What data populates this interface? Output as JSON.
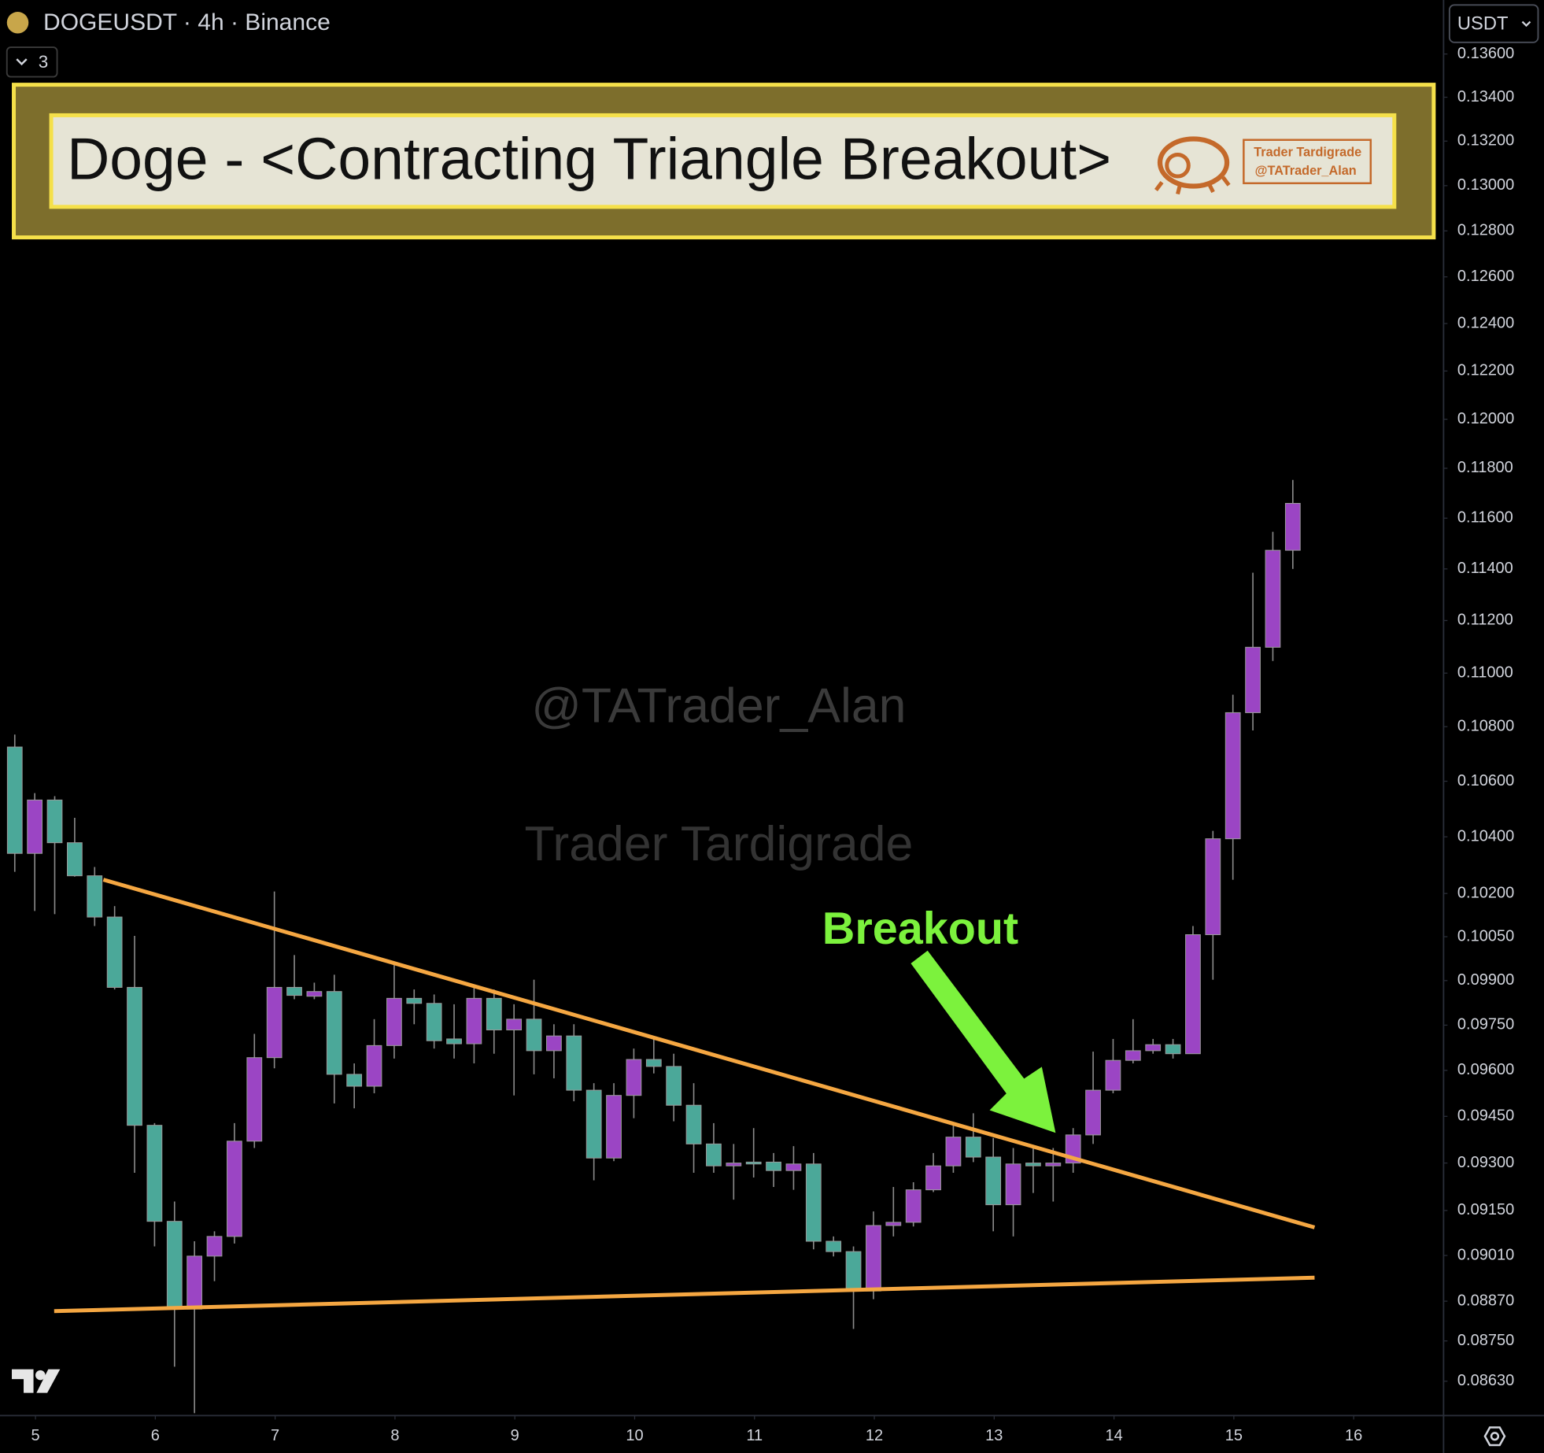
{
  "symbol_label": "DOGEUSDT · 4h · Binance",
  "indicator_count": 3,
  "banner": {
    "title": "Doge - <Contracting Triangle Breakout>",
    "badge_name": "Trader Tardigrade",
    "badge_handle": "@TATrader_Alan"
  },
  "watermark": {
    "handle": "@TATrader_Alan",
    "name": "Trader Tardigrade"
  },
  "annotation": "Breakout",
  "chart_data": {
    "type": "candlestick",
    "currency": "USDT",
    "log_scale": true,
    "up_color": "#9b45c4",
    "down_color": "#4ba899",
    "ylim": [
      0.08529,
      0.13854
    ],
    "yticks": [
      {
        "value": 0.136,
        "label": "0.13600"
      },
      {
        "value": 0.134,
        "label": "0.13400"
      },
      {
        "value": 0.132,
        "label": "0.13200"
      },
      {
        "value": 0.13,
        "label": "0.13000"
      },
      {
        "value": 0.128,
        "label": "0.12800"
      },
      {
        "value": 0.126,
        "label": "0.12600"
      },
      {
        "value": 0.124,
        "label": "0.12400"
      },
      {
        "value": 0.122,
        "label": "0.12200"
      },
      {
        "value": 0.12,
        "label": "0.12000"
      },
      {
        "value": 0.118,
        "label": "0.11800"
      },
      {
        "value": 0.116,
        "label": "0.11600"
      },
      {
        "value": 0.114,
        "label": "0.11400"
      },
      {
        "value": 0.112,
        "label": "0.11200"
      },
      {
        "value": 0.11,
        "label": "0.11000"
      },
      {
        "value": 0.108,
        "label": "0.10800"
      },
      {
        "value": 0.106,
        "label": "0.10600"
      },
      {
        "value": 0.104,
        "label": "0.10400"
      },
      {
        "value": 0.102,
        "label": "0.10200"
      },
      {
        "value": 0.1005,
        "label": "0.10050"
      },
      {
        "value": 0.099,
        "label": "0.09900"
      },
      {
        "value": 0.0975,
        "label": "0.09750"
      },
      {
        "value": 0.096,
        "label": "0.09600"
      },
      {
        "value": 0.0945,
        "label": "0.09450"
      },
      {
        "value": 0.093,
        "label": "0.09300"
      },
      {
        "value": 0.0915,
        "label": "0.09150"
      },
      {
        "value": 0.0901,
        "label": "0.09010"
      },
      {
        "value": 0.0887,
        "label": "0.08870"
      },
      {
        "value": 0.0875,
        "label": "0.08750"
      },
      {
        "value": 0.0863,
        "label": "0.08630"
      }
    ],
    "xlim": [
      4.704,
      16.75
    ],
    "xticks": [
      5,
      6,
      7,
      8,
      9,
      10,
      11,
      12,
      13,
      14,
      15,
      16
    ],
    "open": [
      0.10725,
      0.10341,
      0.10532,
      0.10379,
      0.10262,
      0.10118,
      0.09877,
      0.09421,
      0.09116,
      0.08846,
      0.09008,
      0.09069,
      0.0937,
      0.09642,
      0.09877,
      0.09847,
      0.09863,
      0.09587,
      0.09548,
      0.09682,
      0.0984,
      0.09823,
      0.09704,
      0.09688,
      0.0984,
      0.09734,
      0.0977,
      0.09665,
      0.09714,
      0.09535,
      0.09316,
      0.09518,
      0.09636,
      0.09613,
      0.09486,
      0.09361,
      0.09291,
      0.09303,
      0.09303,
      0.09276,
      0.09297,
      0.09054,
      0.09022,
      0.08901,
      0.09103,
      0.09113,
      0.09215,
      0.09291,
      0.09383,
      0.09319,
      0.09168,
      0.093,
      0.09291,
      0.093,
      0.0939,
      0.09535,
      0.09633,
      0.09665,
      0.09685,
      0.09655,
      0.10057,
      0.10393,
      0.10852,
      0.11098,
      0.11473
    ],
    "high": [
      0.10771,
      0.10557,
      0.10546,
      0.10468,
      0.10293,
      0.10156,
      0.10053,
      0.09428,
      0.09178,
      0.09054,
      0.09085,
      0.09428,
      0.09721,
      0.10207,
      0.09987,
      0.09893,
      0.0992,
      0.09623,
      0.0977,
      0.09953,
      0.0987,
      0.09853,
      0.0982,
      0.09887,
      0.0987,
      0.0982,
      0.09903,
      0.09753,
      0.09753,
      0.09558,
      0.09558,
      0.09672,
      0.09704,
      0.09655,
      0.09558,
      0.09428,
      0.09361,
      0.09412,
      0.09332,
      0.09354,
      0.09332,
      0.09069,
      0.09038,
      0.09147,
      0.09224,
      0.09239,
      0.09332,
      0.09428,
      0.0946,
      0.0938,
      0.09348,
      0.09348,
      0.09348,
      0.09412,
      0.09662,
      0.09704,
      0.0977,
      0.09704,
      0.09704,
      0.10087,
      0.10421,
      0.10919,
      0.11385,
      0.11546,
      0.11753
    ],
    "low": [
      0.10276,
      0.10139,
      0.10128,
      0.10259,
      0.10087,
      0.0987,
      0.09269,
      0.09038,
      0.08673,
      0.08536,
      0.08931,
      0.09047,
      0.09348,
      0.09607,
      0.09837,
      0.09837,
      0.09492,
      0.09476,
      0.09525,
      0.09639,
      0.09753,
      0.09672,
      0.09639,
      0.09623,
      0.09655,
      0.09518,
      0.09587,
      0.09574,
      0.09499,
      0.09245,
      0.09306,
      0.09444,
      0.0959,
      0.09434,
      0.09269,
      0.09269,
      0.09184,
      0.09254,
      0.09224,
      0.09215,
      0.09029,
      0.09007,
      0.08786,
      0.08876,
      0.09069,
      0.091,
      0.09208,
      0.09269,
      0.09303,
      0.09085,
      0.09069,
      0.09205,
      0.09178,
      0.09269,
      0.09361,
      0.09525,
      0.09623,
      0.09655,
      0.09639,
      0.09655,
      0.09903,
      0.10248,
      0.10786,
      0.11046,
      0.114
    ],
    "close": [
      0.10341,
      0.10532,
      0.10379,
      0.10262,
      0.10118,
      0.09877,
      0.09421,
      0.09116,
      0.08846,
      0.09008,
      0.09069,
      0.0937,
      0.09642,
      0.09877,
      0.0985,
      0.09863,
      0.09587,
      0.09548,
      0.09682,
      0.0984,
      0.09823,
      0.09698,
      0.09688,
      0.0984,
      0.09734,
      0.0977,
      0.09665,
      0.09714,
      0.09535,
      0.09316,
      0.09518,
      0.09636,
      0.09613,
      0.09486,
      0.09361,
      0.09291,
      0.093,
      0.09297,
      0.09276,
      0.09297,
      0.09054,
      0.09022,
      0.08901,
      0.09103,
      0.09113,
      0.09215,
      0.09291,
      0.09383,
      0.09319,
      0.09168,
      0.09297,
      0.09291,
      0.093,
      0.0939,
      0.09535,
      0.09633,
      0.09665,
      0.09685,
      0.09655,
      0.10057,
      0.10393,
      0.10852,
      0.11098,
      0.11473,
      0.11659
    ]
  }
}
